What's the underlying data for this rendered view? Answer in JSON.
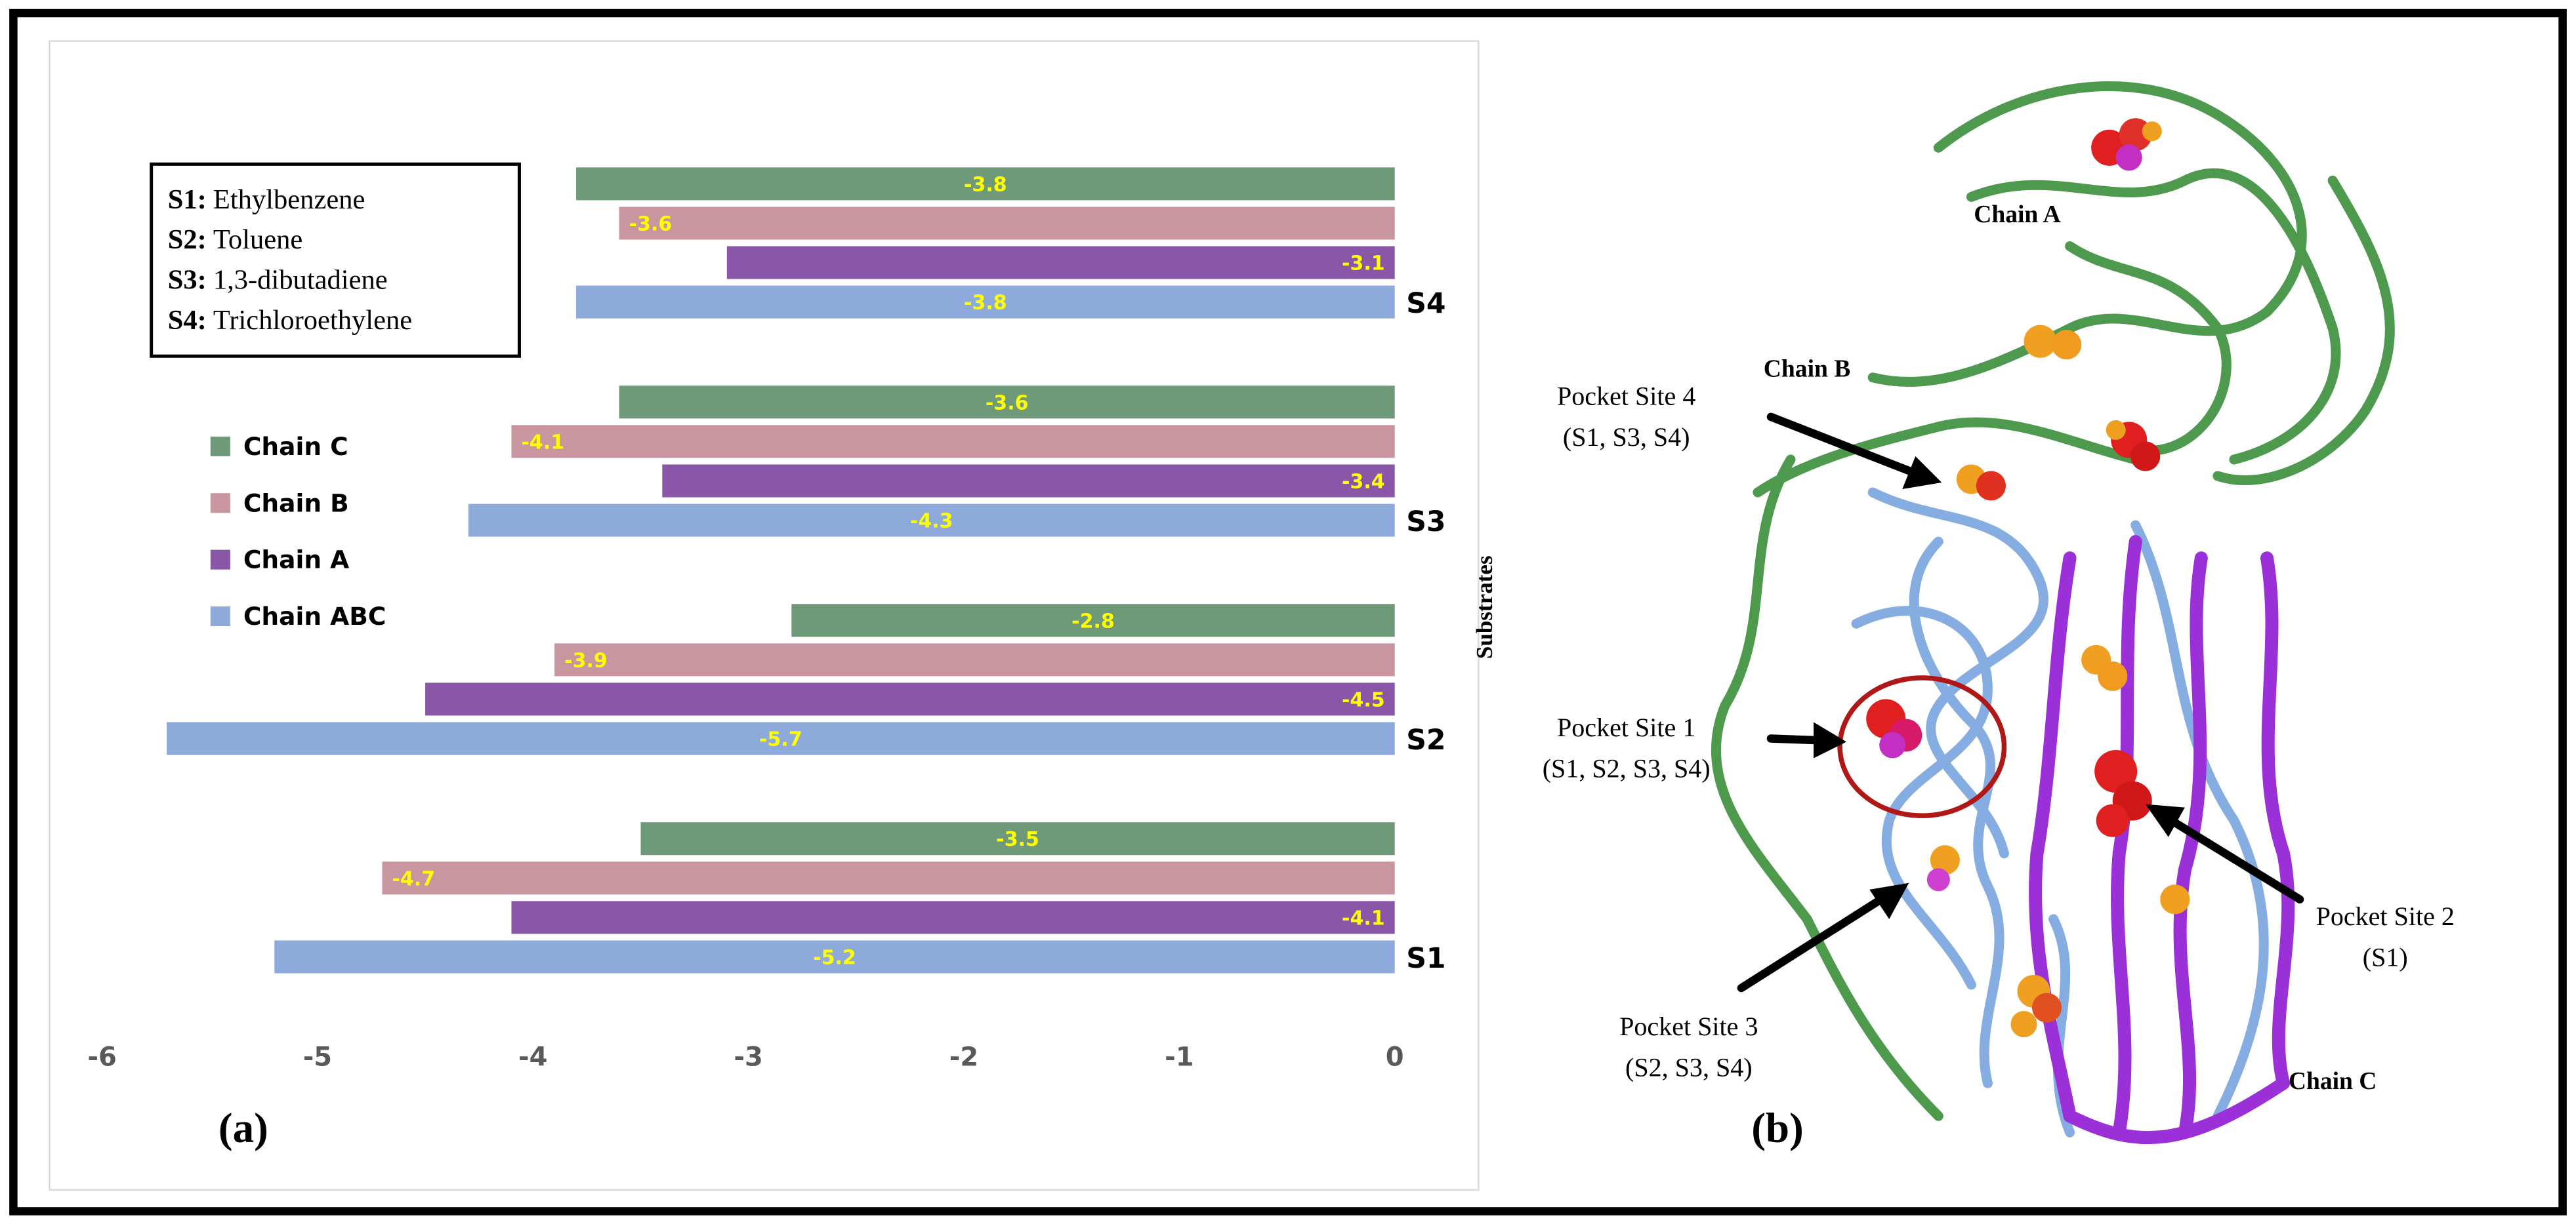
{
  "chart_data": {
    "type": "bar",
    "orientation": "horizontal",
    "categories": [
      "S1",
      "S2",
      "S3",
      "S4"
    ],
    "series": [
      {
        "name": "Chain ABC",
        "color": "#8eaadb",
        "values": [
          -5.2,
          -5.7,
          -4.3,
          -3.8
        ]
      },
      {
        "name": "Chain A",
        "color": "#8a56a8",
        "values": [
          -4.1,
          -4.5,
          -3.4,
          -3.1
        ]
      },
      {
        "name": "Chain B",
        "color": "#c9959f",
        "values": [
          -4.7,
          -3.9,
          -4.1,
          -3.6
        ]
      },
      {
        "name": "Chain C",
        "color": "#6f9a7a",
        "values": [
          -3.5,
          -2.8,
          -3.6,
          -3.8
        ]
      }
    ],
    "value_label_color": "#ffff00",
    "xlim": [
      -6,
      0
    ],
    "xticks": [
      -6,
      -5,
      -4,
      -3,
      -2,
      -1,
      0
    ],
    "y_label": "Substrates",
    "panel_label": "(a)",
    "substrate_key": [
      {
        "code": "S1:",
        "name": "Ethylbenzene"
      },
      {
        "code": "S2:",
        "name": "Toluene"
      },
      {
        "code": "S3:",
        "name": "1,3-dibutadiene"
      },
      {
        "code": "S4:",
        "name": "Trichloroethylene"
      }
    ]
  },
  "panel_b": {
    "panel_label": "(b)",
    "chains": [
      "Chain A",
      "Chain B",
      "Chain C"
    ],
    "pockets": [
      {
        "name": "Pocket Site 4",
        "substrates": "(S1, S3, S4)"
      },
      {
        "name": "Pocket Site 1",
        "substrates": "(S1, S2, S3, S4)"
      },
      {
        "name": "Pocket Site 2",
        "substrates": "(S1)"
      },
      {
        "name": "Pocket Site 3",
        "substrates": "(S2, S3, S4)"
      }
    ]
  }
}
